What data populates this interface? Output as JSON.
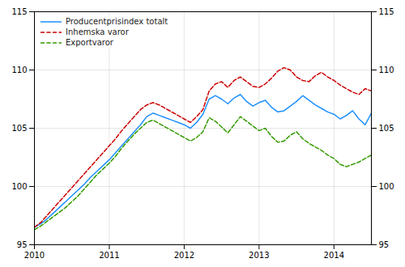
{
  "chart_data": {
    "type": "line",
    "categories": [
      "2010",
      null,
      null,
      null,
      null,
      null,
      null,
      null,
      null,
      null,
      null,
      null,
      "2011",
      null,
      null,
      null,
      null,
      null,
      null,
      null,
      null,
      null,
      null,
      null,
      "2012",
      null,
      null,
      null,
      null,
      null,
      null,
      null,
      null,
      null,
      null,
      null,
      "2013",
      null,
      null,
      null,
      null,
      null,
      null,
      null,
      null,
      null,
      null,
      null,
      "2014",
      null,
      null,
      null,
      null,
      null,
      null
    ],
    "series": [
      {
        "name": "Producentprisindex totalt",
        "color": "#1e90ff",
        "line_style": "solid",
        "values": [
          96.5,
          96.8,
          97.2,
          97.7,
          98.2,
          98.7,
          99.2,
          99.7,
          100.2,
          100.8,
          101.3,
          101.8,
          102.3,
          102.9,
          103.5,
          104.1,
          104.7,
          105.3,
          106.0,
          106.3,
          106.1,
          105.9,
          105.7,
          105.5,
          105.3,
          105.0,
          105.5,
          106.2,
          107.5,
          107.8,
          107.5,
          107.1,
          107.6,
          107.9,
          107.3,
          106.9,
          107.2,
          107.4,
          106.8,
          106.4,
          106.5,
          106.9,
          107.3,
          107.8,
          107.4,
          107.0,
          106.7,
          106.4,
          106.2,
          105.8,
          106.1,
          106.5,
          105.8,
          105.3,
          106.3
        ]
      },
      {
        "name": "Inhemska varor",
        "color": "#cc0000",
        "line_style": "dashed",
        "values": [
          96.5,
          96.9,
          97.5,
          98.1,
          98.7,
          99.3,
          99.9,
          100.5,
          101.1,
          101.7,
          102.3,
          102.9,
          103.5,
          104.1,
          104.8,
          105.4,
          106.0,
          106.6,
          107.0,
          107.2,
          107.0,
          106.7,
          106.4,
          106.1,
          105.8,
          105.5,
          106.0,
          106.6,
          108.2,
          108.8,
          109.0,
          108.5,
          109.1,
          109.4,
          109.0,
          108.6,
          108.5,
          108.8,
          109.3,
          109.9,
          110.2,
          110.0,
          109.4,
          109.1,
          109.0,
          109.5,
          109.8,
          109.4,
          109.1,
          108.7,
          108.4,
          108.1,
          107.9,
          108.4,
          108.2
        ]
      },
      {
        "name": "Exportvaror",
        "color": "#339900",
        "line_style": "dashed",
        "values": [
          96.3,
          96.6,
          97.0,
          97.4,
          97.8,
          98.2,
          98.7,
          99.2,
          99.8,
          100.4,
          101.0,
          101.5,
          102.0,
          102.6,
          103.3,
          103.9,
          104.5,
          105.0,
          105.5,
          105.7,
          105.4,
          105.1,
          104.8,
          104.5,
          104.2,
          103.9,
          104.2,
          104.7,
          105.9,
          105.6,
          105.1,
          104.6,
          105.3,
          106.0,
          105.6,
          105.2,
          104.8,
          105.0,
          104.3,
          103.8,
          103.9,
          104.4,
          104.7,
          104.1,
          103.7,
          103.4,
          103.1,
          102.7,
          102.4,
          101.9,
          101.7,
          101.9,
          102.1,
          102.4,
          102.7
        ]
      }
    ],
    "ylim": [
      95,
      115
    ],
    "yticks": [
      95,
      100,
      105,
      110,
      115
    ],
    "grid": true,
    "legend": "upper left"
  }
}
